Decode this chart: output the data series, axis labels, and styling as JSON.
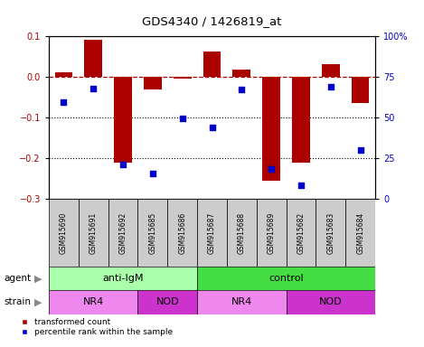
{
  "title": "GDS4340 / 1426819_at",
  "samples": [
    "GSM915690",
    "GSM915691",
    "GSM915692",
    "GSM915685",
    "GSM915686",
    "GSM915687",
    "GSM915688",
    "GSM915689",
    "GSM915682",
    "GSM915683",
    "GSM915684"
  ],
  "bar_values": [
    0.012,
    0.09,
    -0.21,
    -0.03,
    -0.005,
    0.062,
    0.018,
    -0.255,
    -0.21,
    0.032,
    -0.065
  ],
  "scatter_values": [
    59.5,
    68.0,
    21.5,
    15.5,
    49.5,
    44.0,
    67.0,
    18.5,
    8.5,
    69.0,
    30.0
  ],
  "bar_color": "#AA0000",
  "scatter_color": "#0000CC",
  "ylim_left": [
    -0.3,
    0.1
  ],
  "ylim_right": [
    0,
    100
  ],
  "yticks_left": [
    -0.3,
    -0.2,
    -0.1,
    0.0,
    0.1
  ],
  "yticks_right": [
    0,
    25,
    50,
    75,
    100
  ],
  "ytick_labels_right": [
    "0",
    "25",
    "50",
    "75",
    "100%"
  ],
  "hline_y": 0.0,
  "dotted_lines": [
    -0.1,
    -0.2
  ],
  "agent_groups": [
    {
      "label": "anti-IgM",
      "start": 0,
      "end": 5,
      "color": "#AAFFAA"
    },
    {
      "label": "control",
      "start": 5,
      "end": 11,
      "color": "#44DD44"
    }
  ],
  "strain_groups": [
    {
      "label": "NR4",
      "start": 0,
      "end": 3,
      "color": "#EE88EE"
    },
    {
      "label": "NOD",
      "start": 3,
      "end": 5,
      "color": "#CC33CC"
    },
    {
      "label": "NR4",
      "start": 5,
      "end": 8,
      "color": "#EE88EE"
    },
    {
      "label": "NOD",
      "start": 8,
      "end": 11,
      "color": "#CC33CC"
    }
  ],
  "legend_items": [
    {
      "label": "transformed count",
      "color": "#AA0000"
    },
    {
      "label": "percentile rank within the sample",
      "color": "#0000CC"
    }
  ],
  "bar_width": 0.6,
  "background_color": "#FFFFFF",
  "label_bg_color": "#CCCCCC",
  "agent_label": "agent",
  "strain_label": "strain"
}
